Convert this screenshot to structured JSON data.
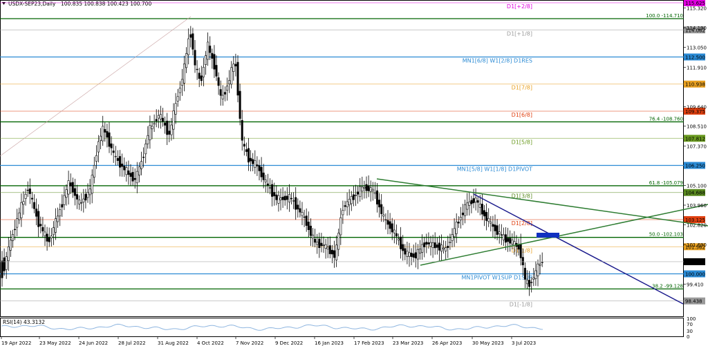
{
  "header": {
    "symbol": "USDX-SEP23,Daily",
    "ohlc": "100.835 100.838 100.423 100.700"
  },
  "murrey_levels": [
    {
      "label": "D1[+2/8]",
      "price": 115.625,
      "price_text": "115.625",
      "color": "#e000e0"
    },
    {
      "label": "D1[+1/8]",
      "price": 114.062,
      "price_text": "114.062",
      "color": "#9a9a9a"
    },
    {
      "label": "MN1[6/8] W1[2/8] D1RES",
      "price": 112.5,
      "price_text": "112.500",
      "color": "#2a8ad4"
    },
    {
      "label": "D1[7/8]",
      "price": 110.938,
      "price_text": "110.938",
      "color": "#e8a020"
    },
    {
      "label": "D1[6/8]",
      "price": 109.375,
      "price_text": "109.375",
      "color": "#e04010"
    },
    {
      "label": "D1[5/8]",
      "price": 107.812,
      "price_text": "107.812",
      "color": "#6a9a20"
    },
    {
      "label": "MN1[5/8] W1[1/8] D1PIVOT",
      "price": 106.25,
      "price_text": "106.250",
      "color": "#2a8ad4"
    },
    {
      "label": "D1[3/8]",
      "price": 104.688,
      "price_text": "104.688",
      "color": "#5a8a20"
    },
    {
      "label": "D1[2/8]",
      "price": 103.125,
      "price_text": "103.125",
      "color": "#e04010"
    },
    {
      "label": "D1[1/8]",
      "price": 101.562,
      "price_text": "101.562",
      "color": "#e8a020"
    },
    {
      "label": "MN1PIVOT W1SUP D1SUP",
      "price": 100.0,
      "price_text": "100.000",
      "color": "#2a8ad4"
    },
    {
      "label": "D1[-1/8]",
      "price": 98.438,
      "price_text": "98.438",
      "color": "#9a9a9a"
    }
  ],
  "fib_levels": [
    {
      "label": "100.0 -114.710",
      "price": 114.71
    },
    {
      "label": "76.4 -108.760",
      "price": 108.76
    },
    {
      "label": "61.8 -105.079",
      "price": 105.079
    },
    {
      "label": "50.0 -102.103",
      "price": 102.103
    },
    {
      "label": "38.2 -99.128",
      "price": 99.128
    }
  ],
  "y_axis_ticks": [
    "115.320",
    "114.190",
    "113.050",
    "111.910",
    "109.640",
    "108.510",
    "107.370",
    "105.100",
    "103.960",
    "102.820",
    "101.690",
    "99.410"
  ],
  "current_price": "100.700",
  "x_axis_labels": [
    "19 Apr 2022",
    "23 May 2022",
    "24 Jun 2022",
    "28 Jul 2022",
    "31 Aug 2022",
    "4 Oct 2022",
    "7 Nov 2022",
    "9 Dec 2022",
    "16 Jan 2023",
    "17 Feb 2023",
    "23 Mar 2023",
    "26 Apr 2023",
    "30 May 2023",
    "3 Jul 2023"
  ],
  "rsi": {
    "label": "RSI(14) 43.3132",
    "ticks": [
      "100",
      "70",
      "30",
      "0"
    ]
  },
  "colors": {
    "candle_bull": "#ffffff",
    "candle_bear": "#000000",
    "fib_line": "#006400",
    "trend_blue": "#1a1a8c",
    "rsi_line": "#8fb6e0"
  }
}
